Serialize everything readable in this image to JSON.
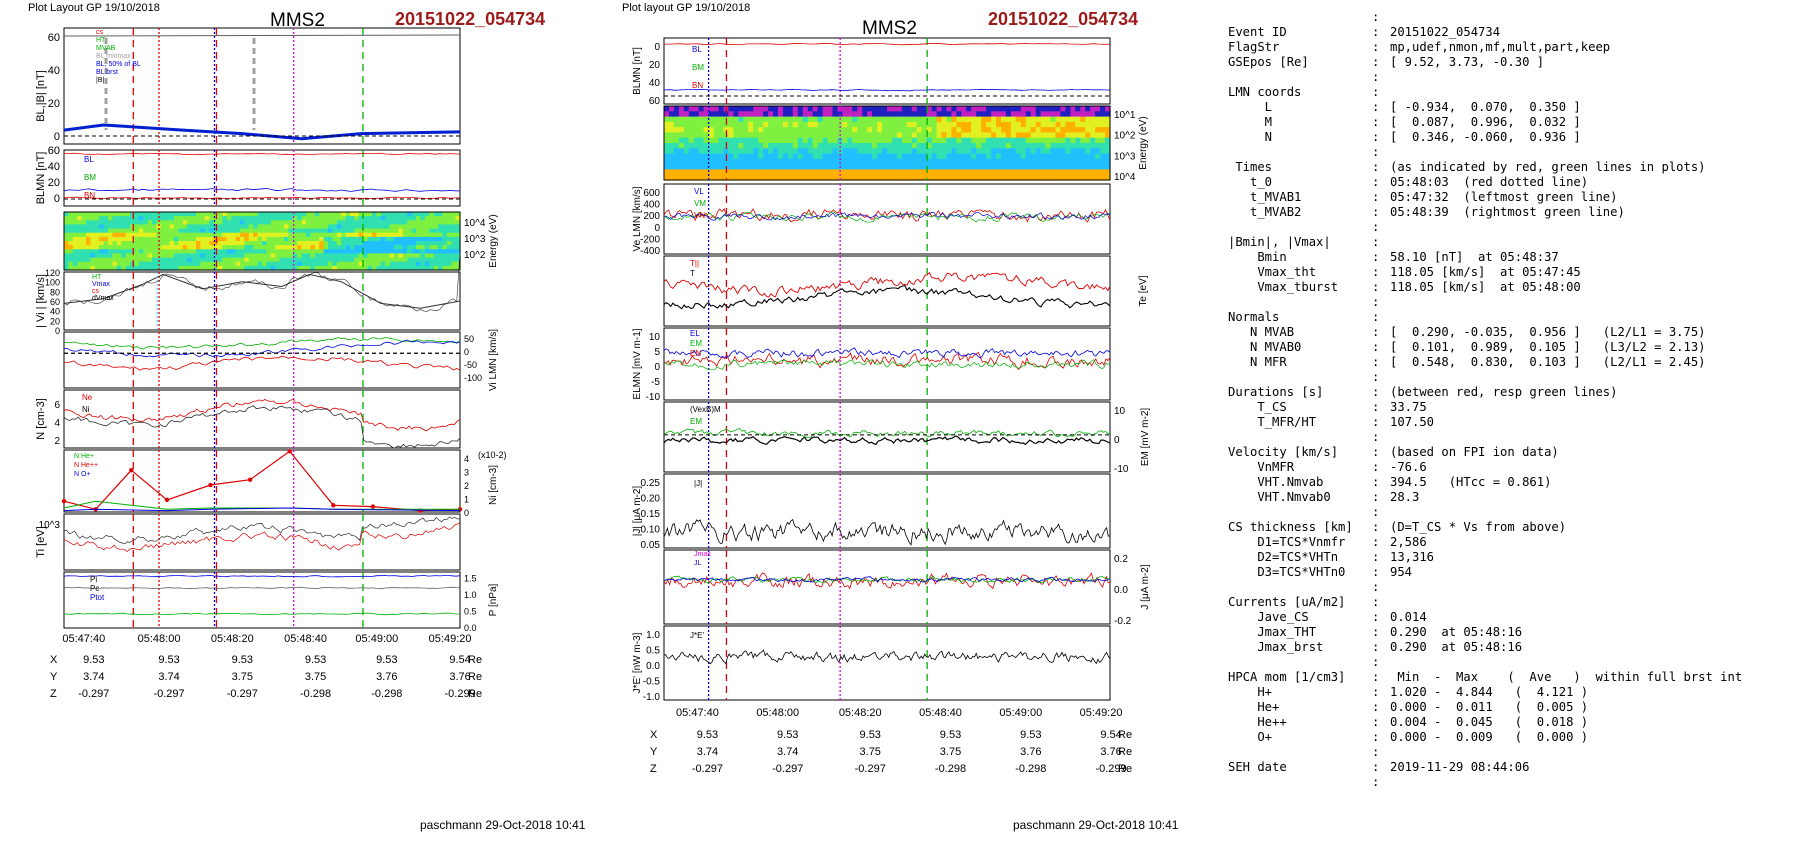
{
  "left_panel": {
    "header_left": "Plot Layout GP 19/10/2018",
    "spacecraft": "MMS2",
    "event": "20151022_054734",
    "footer": "paschmann 29-Oct-2018 10:41"
  },
  "middle_panel": {
    "header_left": "Plot layout GP 19/10/2018",
    "spacecraft": "MMS2",
    "event": "20151022_054734",
    "footer": "paschmann 29-Oct-2018 10:41"
  },
  "time_ticks": [
    "05:47:40",
    "05:48:00",
    "05:48:20",
    "05:48:40",
    "05:49:00",
    "05:49:20"
  ],
  "position_table": {
    "X": [
      "9.53",
      "9.53",
      "9.53",
      "9.53",
      "9.53",
      "9.54"
    ],
    "Y": [
      "3.74",
      "3.74",
      "3.75",
      "3.75",
      "3.76",
      "3.76"
    ],
    "Z": [
      "-0.297",
      "-0.297",
      "-0.297",
      "-0.298",
      "-0.298",
      "-0.299"
    ],
    "unit": "Re"
  },
  "colors": {
    "event_title": "#9b1b1b",
    "red": "#e00000",
    "green": "#00b000",
    "blue": "#0000e0",
    "magenta": "#e000e0"
  },
  "chart_data": [
    {
      "type": "line",
      "panel": "left-1",
      "ylabel": "BL,|B| [nT]",
      "ylim": [
        0,
        60
      ],
      "yticks": [
        "0",
        "20",
        "40",
        "60"
      ],
      "legend": [
        "cs",
        "HT",
        "MVAB",
        "BL minmax",
        "BL, 50% of BL",
        "BL brst",
        "|B|"
      ],
      "series": [
        {
          "name": "|B|",
          "x": [
            0,
            0.3,
            0.6,
            0.9,
            1
          ],
          "y": [
            58,
            57,
            58,
            59,
            59
          ]
        },
        {
          "name": "BL brst",
          "x": [
            0,
            0.1,
            0.3,
            0.45,
            0.6,
            0.75,
            1
          ],
          "y": [
            3,
            6,
            3,
            1,
            -2,
            1,
            2
          ]
        }
      ]
    },
    {
      "type": "line",
      "panel": "left-2",
      "ylabel": "BLMN [nT]",
      "ylim": [
        -5,
        60
      ],
      "yticks": [
        "0",
        "20",
        "40",
        "60"
      ],
      "legend": [
        "BL",
        "BM",
        "BN"
      ]
    },
    {
      "type": "heatmap",
      "panel": "left-3",
      "ylabel": "Energy (eV)",
      "yticks": [
        "10^2",
        "10^3",
        "10^4"
      ]
    },
    {
      "type": "line",
      "panel": "left-4",
      "ylabel": "| Vi | [km/s]",
      "ylim": [
        0,
        120
      ],
      "yticks": [
        "0",
        "20",
        "40",
        "60",
        "80",
        "100",
        "120"
      ],
      "legend": [
        "HT",
        "Vmax",
        "cs",
        "dVmax"
      ],
      "series": [
        {
          "name": "|Vi|",
          "x": [
            0,
            0.1,
            0.2,
            0.25,
            0.35,
            0.45,
            0.55,
            0.62,
            0.7,
            0.8,
            0.9,
            1
          ],
          "y": [
            55,
            65,
            95,
            115,
            85,
            100,
            90,
            115,
            100,
            55,
            45,
            60
          ]
        }
      ]
    },
    {
      "type": "line",
      "panel": "left-5",
      "ylabel": "Vi LMN [km/s]",
      "yticks": [
        "50",
        "0",
        "-50",
        "-100"
      ]
    },
    {
      "type": "line",
      "panel": "left-6",
      "ylabel": "N [cm-3]",
      "ylim": [
        1,
        7
      ],
      "yticks": [
        "2",
        "4",
        "6"
      ],
      "legend": [
        "Ne",
        "Ni"
      ]
    },
    {
      "type": "line",
      "panel": "left-7",
      "ylabel": "Ni [cm-3]",
      "yticks": [
        "0",
        "1",
        "2",
        "3",
        "4"
      ],
      "y2note": "(x10-2)",
      "legend": [
        "N He+",
        "N He++",
        "N O+"
      ],
      "series": [
        {
          "name": "N He++",
          "x": [
            0,
            0.08,
            0.17,
            0.26,
            0.37,
            0.47,
            0.57,
            0.68,
            0.78,
            0.9,
            1
          ],
          "y": [
            0.8,
            0.2,
            3.1,
            0.9,
            2.0,
            2.4,
            4.5,
            0.5,
            0.4,
            0.1,
            0.2
          ]
        }
      ]
    },
    {
      "type": "line",
      "panel": "left-8",
      "ylabel": "Ti [eV]",
      "yticks": [
        "10^3"
      ]
    },
    {
      "type": "line",
      "panel": "left-9",
      "ylabel": "P [nPa]",
      "ylim": [
        0,
        1.7
      ],
      "yticks": [
        "0.0",
        "0.5",
        "1.0",
        "1.5"
      ],
      "legend": [
        "Pi",
        "Pc",
        "Ptot"
      ]
    },
    {
      "type": "line",
      "panel": "mid-1",
      "ylabel": "BLMN [nT]",
      "yticks": [
        "0",
        "20",
        "40",
        "60"
      ],
      "legend": [
        "BL",
        "BM",
        "BN"
      ]
    },
    {
      "type": "heatmap",
      "panel": "mid-2",
      "ylabel": "Energy (eV)",
      "yticks": [
        "10^1",
        "10^2",
        "10^3",
        "10^4"
      ]
    },
    {
      "type": "line",
      "panel": "mid-3",
      "ylabel": "Ve LMN [km/s]",
      "yticks": [
        "600",
        "400",
        "200",
        "0",
        "-200",
        "-400"
      ],
      "legend": [
        "VL",
        "VM",
        "VN"
      ]
    },
    {
      "type": "line",
      "panel": "mid-4",
      "ylabel": "Te [eV]",
      "legend": [
        "T||",
        "T"
      ]
    },
    {
      "type": "line",
      "panel": "mid-5",
      "ylabel": "ELMN [mV m-1]",
      "yticks": [
        "10",
        "5",
        "0",
        "-5",
        "-10"
      ],
      "legend": [
        "EL",
        "EM",
        "EN"
      ]
    },
    {
      "type": "line",
      "panel": "mid-6",
      "ylabel": "EM [mV m-2]",
      "yticks": [
        "10",
        "0",
        "-10"
      ],
      "legend": [
        "(VexB)M",
        "EM"
      ]
    },
    {
      "type": "line",
      "panel": "mid-7",
      "ylabel": "|J| [μA m-2]",
      "yticks": [
        "0.25",
        "0.20",
        "0.15",
        "0.10",
        "0.05"
      ],
      "legend": [
        "|J|"
      ]
    },
    {
      "type": "line",
      "panel": "mid-8",
      "ylabel": "J [μA m-2]",
      "yticks": [
        "0.2",
        "0.0",
        "-0.2"
      ],
      "legend": [
        "Jmax",
        "JL"
      ]
    },
    {
      "type": "line",
      "panel": "mid-9",
      "ylabel": "J*E' [nW m-3]",
      "yticks": [
        "1.0",
        "0.5",
        "0.0",
        "-0.5",
        "-1.0"
      ],
      "legend": [
        "J*E'"
      ]
    }
  ],
  "info": [
    {
      "k": "",
      "c": ":",
      "v": ""
    },
    {
      "k": "Event ID",
      "c": ":",
      "v": "20151022_054734"
    },
    {
      "k": "FlagStr",
      "c": ":",
      "v": "mp,udef,nmon,mf,mult,part,keep"
    },
    {
      "k": "GSEpos [Re]",
      "c": ":",
      "v": "[ 9.52, 3.73, -0.30 ]"
    },
    {
      "k": "",
      "c": ":",
      "v": ""
    },
    {
      "k": "LMN coords",
      "c": ":",
      "v": ""
    },
    {
      "k": "     L",
      "c": ":",
      "v": "[ -0.934,  0.070,  0.350 ]"
    },
    {
      "k": "     M",
      "c": ":",
      "v": "[  0.087,  0.996,  0.032 ]"
    },
    {
      "k": "     N",
      "c": ":",
      "v": "[  0.346, -0.060,  0.936 ]"
    },
    {
      "k": "",
      "c": ":",
      "v": ""
    },
    {
      "k": " Times",
      "c": ":",
      "v": "(as indicated by red, green lines in plots)"
    },
    {
      "k": "   t_0",
      "c": ":",
      "v": "05:48:03  (red dotted line)"
    },
    {
      "k": "   t_MVAB1",
      "c": ":",
      "v": "05:47:32  (leftmost green line)"
    },
    {
      "k": "   t_MVAB2",
      "c": ":",
      "v": "05:48:39  (rightmost green line)"
    },
    {
      "k": "",
      "c": ":",
      "v": ""
    },
    {
      "k": "|Bmin|, |Vmax|",
      "c": ":",
      "v": ""
    },
    {
      "k": "    Bmin",
      "c": ":",
      "v": "58.10 [nT]  at 05:48:37"
    },
    {
      "k": "    Vmax_tht",
      "c": ":",
      "v": "118.05 [km/s]  at 05:47:45"
    },
    {
      "k": "    Vmax_tburst",
      "c": ":",
      "v": "118.05 [km/s]  at 05:48:00"
    },
    {
      "k": "",
      "c": ":",
      "v": ""
    },
    {
      "k": "Normals",
      "c": ":",
      "v": ""
    },
    {
      "k": "   N MVAB",
      "c": ":",
      "v": "[  0.290, -0.035,  0.956 ]   (L2/L1 = 3.75)"
    },
    {
      "k": "   N MVAB0",
      "c": ":",
      "v": "[  0.101,  0.989,  0.105 ]   (L3/L2 = 2.13)"
    },
    {
      "k": "   N MFR",
      "c": ":",
      "v": "[  0.548,  0.830,  0.103 ]   (L2/L1 = 2.45)"
    },
    {
      "k": "",
      "c": ":",
      "v": ""
    },
    {
      "k": "Durations [s]",
      "c": ":",
      "v": "(between red, resp green lines)"
    },
    {
      "k": "    T_CS",
      "c": ":",
      "v": "33.75"
    },
    {
      "k": "    T_MFR/HT",
      "c": ":",
      "v": "107.50"
    },
    {
      "k": "",
      "c": ":",
      "v": ""
    },
    {
      "k": "Velocity [km/s]",
      "c": ":",
      "v": "(based on FPI ion data)"
    },
    {
      "k": "    VnMFR",
      "c": ":",
      "v": "-76.6"
    },
    {
      "k": "    VHT.Nmvab",
      "c": ":",
      "v": "394.5   (HTcc = 0.861)"
    },
    {
      "k": "    VHT.Nmvab0",
      "c": ":",
      "v": "28.3"
    },
    {
      "k": "",
      "c": ":",
      "v": ""
    },
    {
      "k": "CS thickness [km]",
      "c": ":",
      "v": "(D=T_CS * Vs from above)"
    },
    {
      "k": "    D1=TCS*Vnmfr",
      "c": ":",
      "v": "2,586"
    },
    {
      "k": "    D2=TCS*VHTn",
      "c": ":",
      "v": "13,316"
    },
    {
      "k": "    D3=TCS*VHTn0",
      "c": ":",
      "v": "954"
    },
    {
      "k": "",
      "c": ":",
      "v": ""
    },
    {
      "k": "Currents [uA/m2]",
      "c": ":",
      "v": ""
    },
    {
      "k": "    Jave_CS",
      "c": ":",
      "v": "0.014"
    },
    {
      "k": "    Jmax_THT",
      "c": ":",
      "v": "0.290  at 05:48:16"
    },
    {
      "k": "    Jmax_brst",
      "c": ":",
      "v": "0.290  at 05:48:16"
    },
    {
      "k": "",
      "c": ":",
      "v": ""
    },
    {
      "k": "HPCA mom [1/cm3]",
      "c": ":",
      "v": " Min  -  Max    (  Ave   )  within full brst int"
    },
    {
      "k": "    H+",
      "c": ":",
      "v": "1.020 -  4.844   (  4.121 )"
    },
    {
      "k": "    He+",
      "c": ":",
      "v": "0.000 -  0.011   (  0.005 )"
    },
    {
      "k": "    He++",
      "c": ":",
      "v": "0.004 -  0.045   (  0.018 )"
    },
    {
      "k": "    O+",
      "c": ":",
      "v": "0.000 -  0.009   (  0.000 )"
    },
    {
      "k": "",
      "c": ":",
      "v": ""
    },
    {
      "k": "SEH date",
      "c": ":",
      "v": "2019-11-29 08:44:06"
    },
    {
      "k": "",
      "c": ":",
      "v": ""
    }
  ]
}
